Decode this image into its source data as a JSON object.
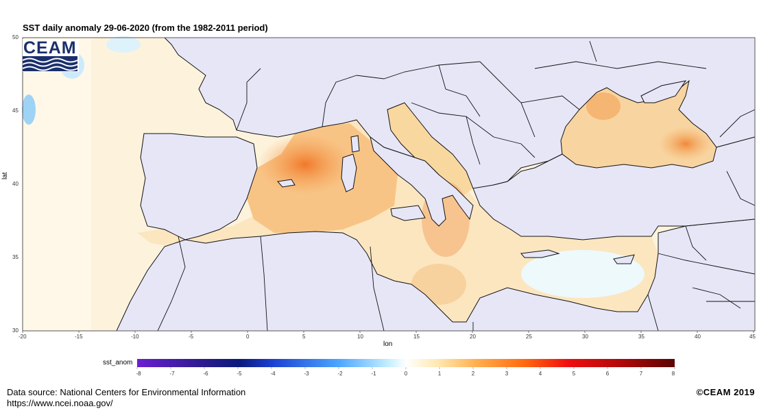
{
  "title": "SST daily anomaly 29-06-2020 (from the 1982-2011 period)",
  "logo": {
    "text": "CEAM"
  },
  "axes": {
    "xlabel": "lon",
    "ylabel": "lat",
    "x_ticks": [
      "-20",
      "-15",
      "-10",
      "-5",
      "0",
      "5",
      "10",
      "15",
      "20",
      "25",
      "30",
      "35",
      "40",
      "45"
    ],
    "y_ticks": [
      "50",
      "45",
      "40",
      "35",
      "30"
    ],
    "xlim": [
      -20,
      45
    ],
    "ylim": [
      30,
      50
    ]
  },
  "colorbar": {
    "label": "sst_anom",
    "ticks": [
      "-8",
      "-7",
      "-6",
      "-5",
      "-4",
      "-3",
      "-2",
      "-1",
      "0",
      "1",
      "2",
      "3",
      "4",
      "5",
      "6",
      "7",
      "8"
    ],
    "range": [
      -8,
      8
    ]
  },
  "footer": {
    "source_line1": "Data source: National Centers for Environmental Information",
    "source_line2": "https://www.ncei.noaa.gov/",
    "copyright": "©CEAM 2019"
  },
  "colors": {
    "land": "#e6e6f7",
    "coast": "#111111"
  }
}
